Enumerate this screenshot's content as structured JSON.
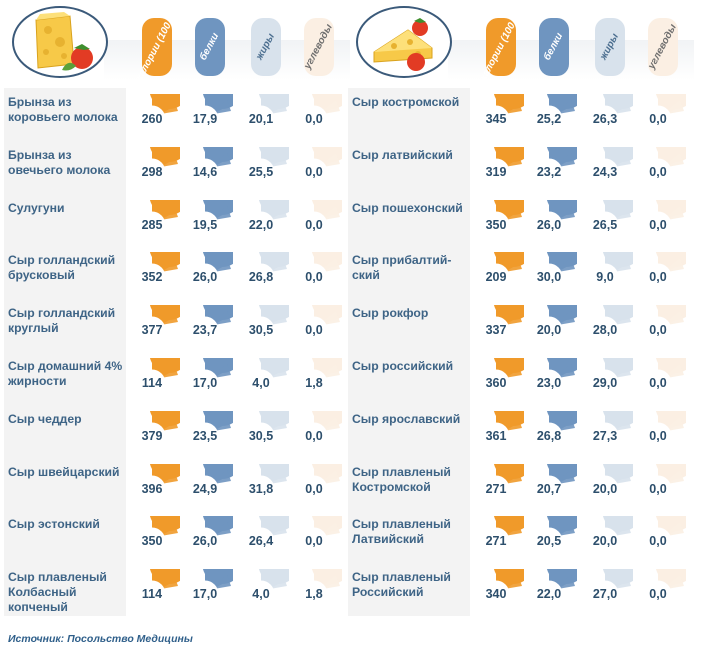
{
  "chart_data": {
    "type": "table",
    "headers": [
      "калории (100 г)",
      "белки",
      "жиры",
      "углеводы"
    ],
    "panels": [
      {
        "rows": [
          {
            "name": "Брынза из коровьего молока",
            "values": [
              "260",
              "17,9",
              "20,1",
              "0,0"
            ]
          },
          {
            "name": "Брынза из овечьего молока",
            "values": [
              "298",
              "14,6",
              "25,5",
              "0,0"
            ]
          },
          {
            "name": "Сулугуни",
            "values": [
              "285",
              "19,5",
              "22,0",
              "0,0"
            ]
          },
          {
            "name": "Сыр голландский брусковый",
            "values": [
              "352",
              "26,0",
              "26,8",
              "0,0"
            ]
          },
          {
            "name": "Сыр голландский круглый",
            "values": [
              "377",
              "23,7",
              "30,5",
              "0,0"
            ]
          },
          {
            "name": "Сыр домашний 4% жирности",
            "values": [
              "114",
              "17,0",
              "4,0",
              "1,8"
            ]
          },
          {
            "name": "Сыр чеддер",
            "values": [
              "379",
              "23,5",
              "30,5",
              "0,0"
            ]
          },
          {
            "name": "Сыр швейцарский",
            "values": [
              "396",
              "24,9",
              "31,8",
              "0,0"
            ]
          },
          {
            "name": "Сыр эстонский",
            "values": [
              "350",
              "26,0",
              "26,4",
              "0,0"
            ]
          },
          {
            "name": "Сыр плавленый Колбасный копченый",
            "values": [
              "114",
              "17,0",
              "4,0",
              "1,8"
            ]
          }
        ]
      },
      {
        "rows": [
          {
            "name": "Сыр костромской",
            "values": [
              "345",
              "25,2",
              "26,3",
              "0,0"
            ]
          },
          {
            "name": "Сыр латвийский",
            "values": [
              "319",
              "23,2",
              "24,3",
              "0,0"
            ]
          },
          {
            "name": "Сыр пошехонский",
            "values": [
              "350",
              "26,0",
              "26,5",
              "0,0"
            ]
          },
          {
            "name": "Сыр прибалтий-ский",
            "values": [
              "209",
              "30,0",
              "9,0",
              "0,0"
            ]
          },
          {
            "name": "Сыр рокфор",
            "values": [
              "337",
              "20,0",
              "28,0",
              "0,0"
            ]
          },
          {
            "name": "Сыр российский",
            "values": [
              "360",
              "23,0",
              "29,0",
              "0,0"
            ]
          },
          {
            "name": "Сыр ярославский",
            "values": [
              "361",
              "26,8",
              "27,3",
              "0,0"
            ]
          },
          {
            "name": "Сыр плавленый Костромской",
            "values": [
              "271",
              "20,7",
              "20,0",
              "0,0"
            ]
          },
          {
            "name": "Сыр плавленый Латвийский",
            "values": [
              "271",
              "20,5",
              "20,0",
              "0,0"
            ]
          },
          {
            "name": "Сыр плавленый Российский",
            "values": [
              "340",
              "22,0",
              "27,0",
              "0,0"
            ]
          }
        ]
      }
    ]
  },
  "colors": {
    "calories": "#f09a2a",
    "protein": "#6f95c0",
    "fat": "#d8e2ec",
    "carbs": "#fbefe3"
  },
  "source": "Источник: Посольство Медицины"
}
